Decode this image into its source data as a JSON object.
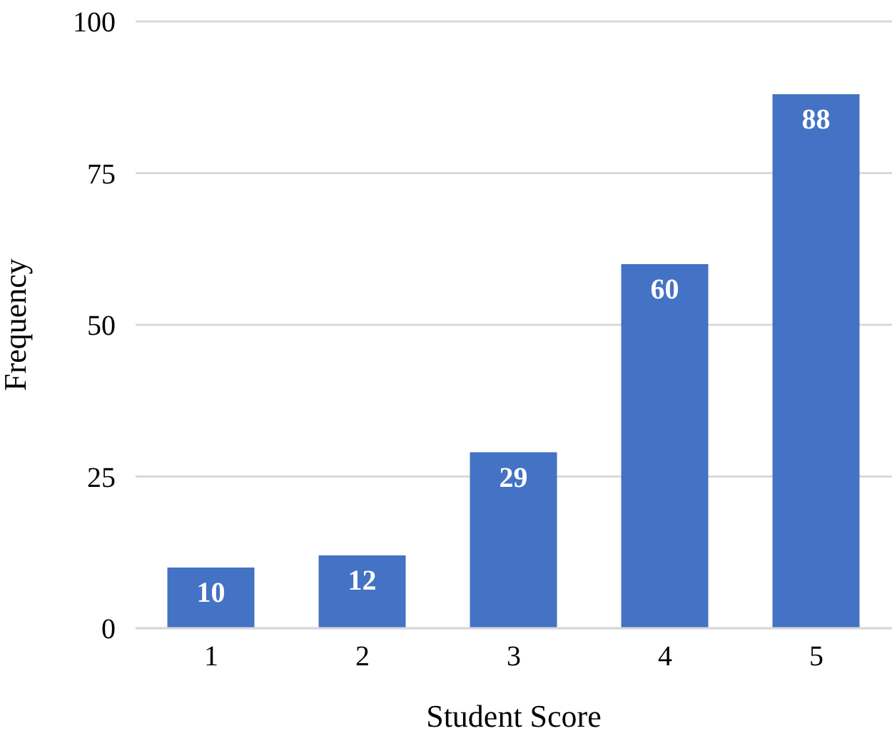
{
  "chart_data": {
    "type": "bar",
    "xlabel": "Student Score",
    "ylabel": "Frequency",
    "categories": [
      "1",
      "2",
      "3",
      "4",
      "5"
    ],
    "values": [
      10,
      12,
      29,
      60,
      88
    ],
    "color": "#4472c4",
    "ylim": [
      0,
      100
    ],
    "yticks": [
      0,
      25,
      50,
      75,
      100
    ],
    "grid": "y",
    "data_labels": true
  }
}
